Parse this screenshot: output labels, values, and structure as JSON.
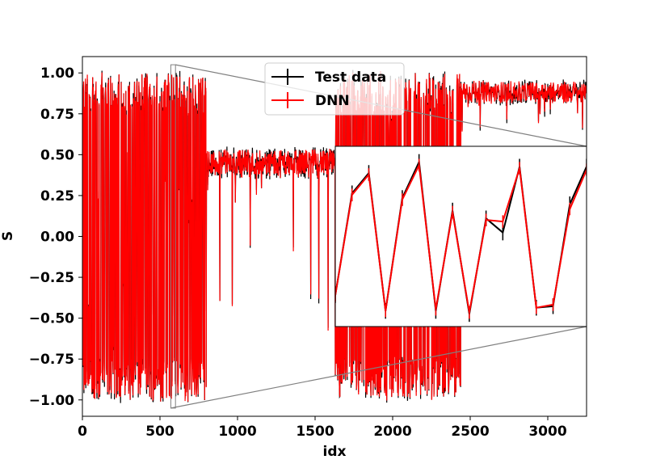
{
  "chart_data": {
    "type": "line",
    "xlabel": "idx",
    "ylabel": "S",
    "xlim": [
      0,
      3250
    ],
    "ylim": [
      -1.1,
      1.1
    ],
    "xticks": [
      0,
      500,
      1000,
      1500,
      2000,
      2500,
      3000
    ],
    "yticks": [
      1.0,
      0.75,
      0.5,
      0.25,
      0.0,
      -0.25,
      -0.5,
      -0.75,
      -1.0
    ],
    "ytick_labels": [
      "1.00",
      "0.75",
      "0.50",
      "0.25",
      "0.00",
      "−0.25",
      "−0.50",
      "−0.75",
      "−1.00"
    ],
    "legend": {
      "placement": "top-center",
      "entries": [
        "Test data",
        "DNN"
      ]
    },
    "series": [
      {
        "name": "Test data",
        "color": "#000000"
      },
      {
        "name": "DNN",
        "color": "#ff0000"
      }
    ],
    "segments": [
      {
        "x_start": 0,
        "x_end": 800,
        "behavior": "oscillating",
        "range": [
          -1.0,
          1.0
        ]
      },
      {
        "x_start": 800,
        "x_end": 1630,
        "behavior": "band",
        "center": 0.45,
        "noise": 0.08,
        "dips_to": -0.7
      },
      {
        "x_start": 1630,
        "x_end": 2440,
        "behavior": "oscillating",
        "range": [
          -1.0,
          1.0
        ]
      },
      {
        "x_start": 2440,
        "x_end": 3250,
        "behavior": "band",
        "center": 0.88,
        "noise": 0.06
      }
    ],
    "inset": {
      "source_x": [
        570,
        600
      ],
      "source_y": [
        -1.05,
        1.05
      ],
      "test_data": [
        -0.4,
        0.25,
        0.38,
        -0.5,
        0.22,
        0.45,
        -0.5,
        0.14,
        -0.52,
        0.09,
        0.0,
        0.42,
        -0.48,
        -0.47,
        0.18,
        0.42
      ],
      "dnn": [
        -0.4,
        0.24,
        0.37,
        -0.5,
        0.21,
        0.43,
        -0.49,
        0.13,
        -0.51,
        0.08,
        0.07,
        0.41,
        -0.48,
        -0.46,
        0.15,
        0.4
      ]
    }
  }
}
